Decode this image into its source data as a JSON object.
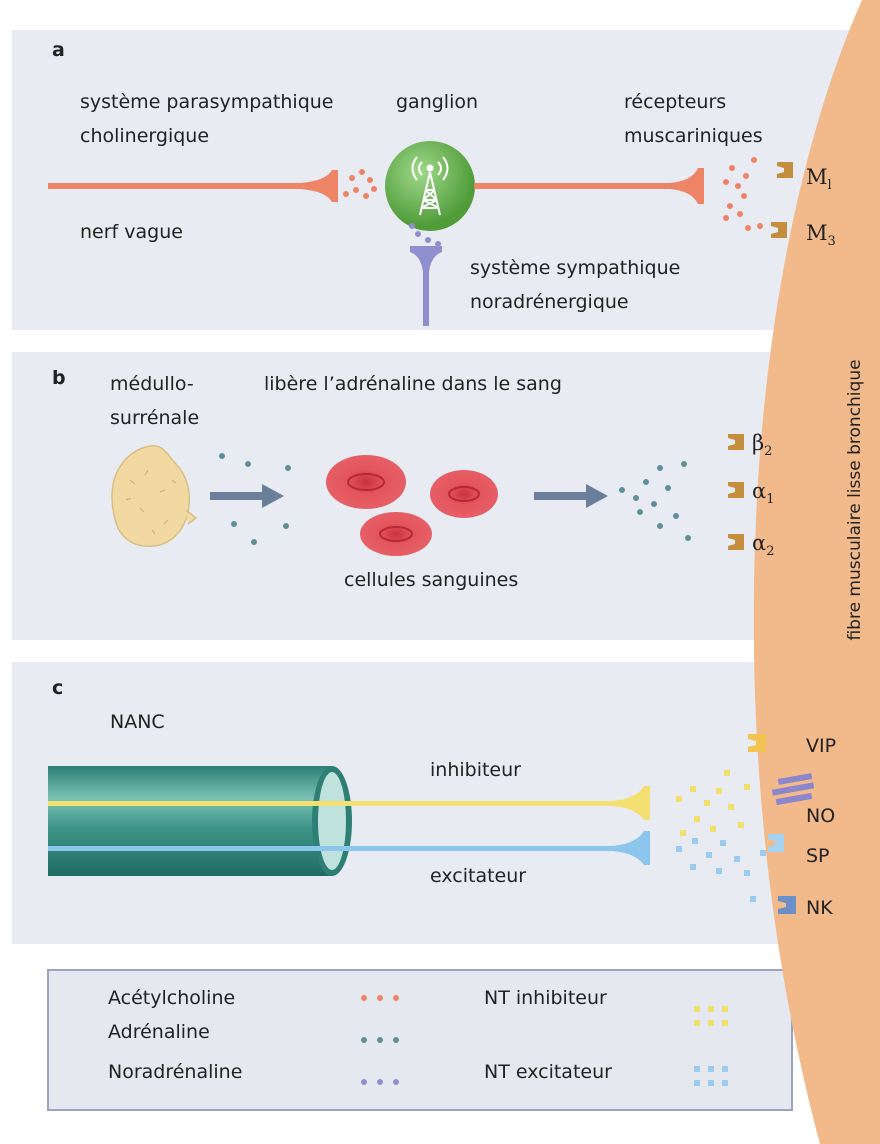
{
  "colors": {
    "panel_bg": "#e9ebf2",
    "muscle": "#f2b98a",
    "parasympathetic_nerve": "#ee8466",
    "sympathetic_nerve": "#8f8fd0",
    "inhibitory_fiber": "#f3e070",
    "excitatory_fiber": "#8cc6ec",
    "nerve_bundle": "#3f9688",
    "ganglion": "#68b34c",
    "red_cell": "#e4545c",
    "adrenal_gland": "#f1d9a1",
    "receptor": "#c58d3e",
    "nk_receptor": "#6d8fc8",
    "legend_border": "#9aa3c0"
  },
  "panel_a": {
    "letter": "a",
    "parasympathetic_label_1": "système parasympathique",
    "parasympathetic_label_2": "cholinergique",
    "ganglion_label": "ganglion",
    "receptors_label_1": "récepteurs",
    "receptors_label_2": "muscariniques",
    "vagus_label": "nerf vague",
    "sympathetic_label_1": "système sympathique",
    "sympathetic_label_2": "noradrénergique",
    "ganglion_icon": "antenna-tower-icon",
    "receptor_m1": {
      "base": "M",
      "subscript": "l"
    },
    "receptor_m3": {
      "base": "M",
      "subscript": "3"
    }
  },
  "panel_b": {
    "letter": "b",
    "gland_label_1": "médullo-",
    "gland_label_2": "surrénale",
    "release_label": "libère l’adrénaline dans le sang",
    "cells_label": "cellules sanguines",
    "gland_icon": "adrenal-gland-icon",
    "receptor_beta2": {
      "base": "β",
      "subscript": "2"
    },
    "receptor_alpha1": {
      "base": "α",
      "subscript": "1"
    },
    "receptor_alpha2": {
      "base": "α",
      "subscript": "2"
    }
  },
  "panel_c": {
    "letter": "c",
    "nanc_label": "NANC",
    "inhibitory_label": "inhibiteur",
    "excitatory_label": "excitateur",
    "receptor_vip": "VIP",
    "receptor_no": "NO",
    "receptor_sp": "SP",
    "receptor_nk": "NK"
  },
  "muscle_label": "fibre musculaire lisse bronchique",
  "legend": {
    "acetylcholine": {
      "label": "Acétylcholine",
      "color": "#ee8466"
    },
    "adrenaline": {
      "label": "Adrénaline",
      "color": "#5f8f98"
    },
    "noradrenaline": {
      "label": "Noradrénaline",
      "color": "#8f8fd0"
    },
    "nt_inhibiteur": {
      "label": "NT inhibiteur",
      "color": "#f3df6e"
    },
    "nt_excitateur": {
      "label": "NT excitateur",
      "color": "#9ccbf0"
    }
  }
}
